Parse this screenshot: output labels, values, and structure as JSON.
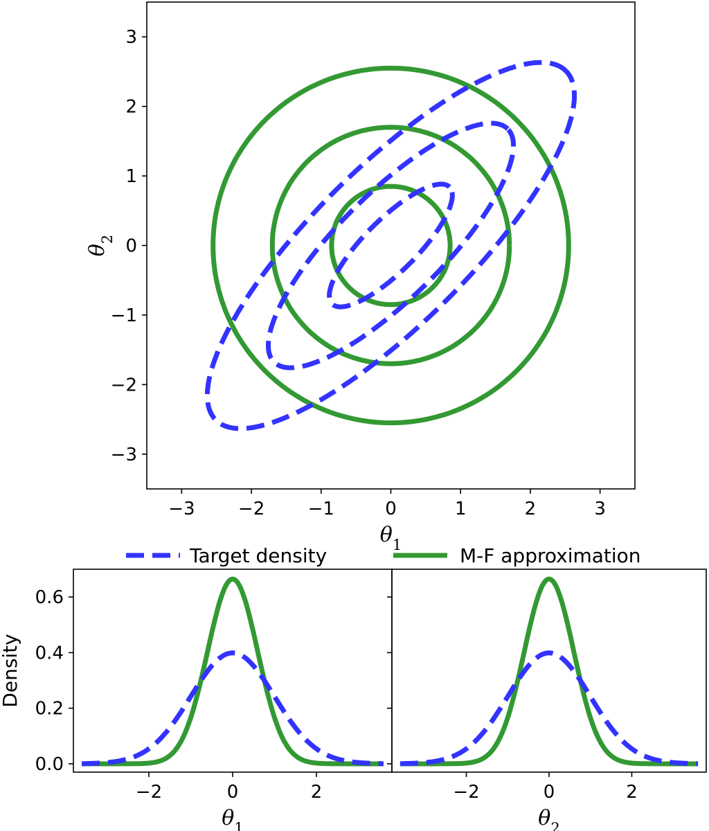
{
  "colors": {
    "target": "#3333ff",
    "approx": "#339933"
  },
  "legend": {
    "placement": "top-center",
    "entries": [
      {
        "label": "Target density",
        "style": "dashed",
        "color": "#3333ff"
      },
      {
        "label": "M-F approximation",
        "style": "solid",
        "color": "#339933"
      }
    ]
  },
  "chart_data": [
    {
      "type": "contour",
      "title": "",
      "xlabel": "θ1",
      "ylabel": "θ2",
      "xlim": [
        -3.5,
        3.5
      ],
      "ylim": [
        -3.5,
        3.5
      ],
      "xticks": [
        -3,
        -2,
        -1,
        0,
        1,
        2,
        3
      ],
      "yticks": [
        -3,
        -2,
        -1,
        0,
        1,
        2,
        3
      ],
      "xtick_labels": [
        "−3",
        "−2",
        "−1",
        "0",
        "1",
        "2",
        "3"
      ],
      "ytick_labels": [
        "−3",
        "−2",
        "−1",
        "0",
        "1",
        "2",
        "3"
      ],
      "grid": false,
      "series": [
        {
          "name": "Target density",
          "style": "dashed",
          "contours": [
            {
              "center": [
                0,
                0
              ],
              "semi_axes": [
                3.55,
                1.12
              ],
              "angle_deg": 45
            },
            {
              "center": [
                0,
                0
              ],
              "semi_axes": [
                2.37,
                0.75
              ],
              "angle_deg": 45
            },
            {
              "center": [
                0,
                0
              ],
              "semi_axes": [
                1.19,
                0.375
              ],
              "angle_deg": 45
            }
          ]
        },
        {
          "name": "M-F approximation",
          "style": "solid",
          "contours": [
            {
              "center": [
                0,
                0
              ],
              "radius": 2.55
            },
            {
              "center": [
                0,
                0
              ],
              "radius": 1.7
            },
            {
              "center": [
                0,
                0
              ],
              "radius": 0.85
            }
          ]
        }
      ]
    },
    {
      "type": "line",
      "title": "",
      "xlabel": "θ1",
      "ylabel": "Density",
      "xlim": [
        -3.8,
        3.8
      ],
      "ylim": [
        -0.03,
        0.7
      ],
      "xticks": [
        -2,
        0,
        2
      ],
      "xtick_labels": [
        "−2",
        "0",
        "2"
      ],
      "yticks": [
        0.0,
        0.2,
        0.4,
        0.6
      ],
      "ytick_labels": [
        "0.0",
        "0.2",
        "0.4",
        "0.6"
      ],
      "grid": false,
      "series": [
        {
          "name": "Target density",
          "style": "dashed",
          "distribution": "normal",
          "mean": 0,
          "sd": 1.0,
          "x_range": [
            -3.6,
            3.6
          ]
        },
        {
          "name": "M-F approximation",
          "style": "solid",
          "distribution": "normal",
          "mean": 0,
          "sd": 0.6,
          "x_range": [
            -3.6,
            3.6
          ]
        }
      ]
    },
    {
      "type": "line",
      "title": "",
      "xlabel": "θ2",
      "ylabel": "",
      "xlim": [
        -3.8,
        3.8
      ],
      "ylim": [
        -0.03,
        0.7
      ],
      "xticks": [
        -2,
        0,
        2
      ],
      "xtick_labels": [
        "−2",
        "0",
        "2"
      ],
      "yticks": [
        0.0,
        0.2,
        0.4,
        0.6
      ],
      "ytick_labels": [],
      "grid": false,
      "series": [
        {
          "name": "Target density",
          "style": "dashed",
          "distribution": "normal",
          "mean": 0,
          "sd": 1.0,
          "x_range": [
            -3.6,
            3.6
          ]
        },
        {
          "name": "M-F approximation",
          "style": "solid",
          "distribution": "normal",
          "mean": 0,
          "sd": 0.6,
          "x_range": [
            -3.6,
            3.6
          ]
        }
      ]
    }
  ]
}
